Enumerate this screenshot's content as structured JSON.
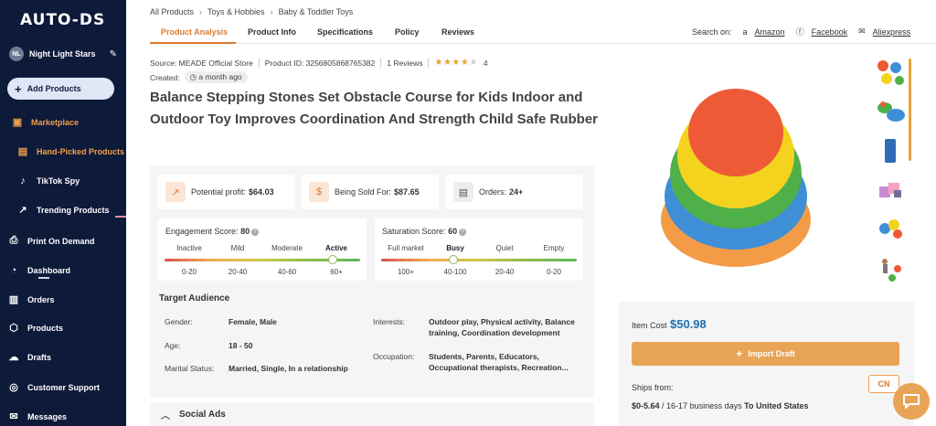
{
  "sidebar": {
    "logo": "AUTO-DS",
    "store_initials": "NL",
    "store_name": "Night Light Stars",
    "add_products": "Add Products",
    "marketplace": "Marketplace",
    "hand_picked": "Hand-Picked Products",
    "tiktok_spy": "TikTok Spy",
    "trending": "Trending Products",
    "print_on_demand": "Print On Demand",
    "dashboard": "Dashboard",
    "orders": "Orders",
    "products": "Products",
    "drafts": "Drafts",
    "customer_support": "Customer Support",
    "messages": "Messages"
  },
  "breadcrumb": [
    "All Products",
    "Toys & Hobbies",
    "Baby & Toddler Toys"
  ],
  "tabs": [
    "Product Analysis",
    "Product Info",
    "Specifications",
    "Policy",
    "Reviews"
  ],
  "search_on": {
    "label": "Search on:",
    "links": [
      "Amazon",
      "Facebook",
      "Aliexpress"
    ]
  },
  "meta": {
    "source": "Source: MEADE Official Store",
    "product_id": "Product ID: 3256805868765382",
    "reviews": "1 Reviews",
    "rating": "4",
    "created_label": "Created:",
    "created_value": "a month ago"
  },
  "product": {
    "title": "Balance Stepping Stones Set Obstacle Course for Kids Indoor and Outdoor Toy Improves Coordination And Strength Child Safe Rubber"
  },
  "metrics": {
    "profit_label": "Potential profit:",
    "profit_value": "$64.03",
    "sold_label": "Being Sold For:",
    "sold_value": "$87.65",
    "orders_label": "Orders:",
    "orders_value": "24+"
  },
  "engagement": {
    "label": "Engagement Score:",
    "value": "80",
    "levels": [
      "Inactive",
      "Mild",
      "Moderate",
      "Active"
    ],
    "ranges": [
      "0-20",
      "20-40",
      "40-60",
      "60+"
    ],
    "level_percent": 86
  },
  "saturation": {
    "label": "Saturation Score:",
    "value": "60",
    "levels": [
      "Full market",
      "Busy",
      "Quiet",
      "Empty"
    ],
    "ranges": [
      "100+",
      "40-100",
      "20-40",
      "0-20"
    ],
    "level_percent": 37
  },
  "audience": {
    "title": "Target Audience",
    "gender_label": "Gender:",
    "gender_value": "Female, Male",
    "age_label": "Age:",
    "age_value": "18 - 50",
    "marital_label": "Marital Status:",
    "marital_value": "Married, Single, In a relationship",
    "interests_label": "Interests:",
    "interests_value": "Outdoor play, Physical activity, Balance training, Coordination development",
    "occupation_label": "Occupation:",
    "occupation_value": "Students, Parents, Educators, Occupational therapists, Recreation..."
  },
  "social_ads": "Social Ads",
  "buy": {
    "item_cost_label": "Item Cost",
    "item_cost": "$50.98",
    "import_label": "Import Draft",
    "ships_from_label": "Ships from:",
    "country": "CN",
    "ship_price": "$0-5.64",
    "ship_days": "/ 16-17 business days",
    "ship_dest": "To United States"
  },
  "colors": {
    "sidebar_bg": "#0e1a3a",
    "accent_orange": "#e07a2e",
    "price_blue": "#1f6fb3",
    "button_orange": "#e8a456"
  }
}
